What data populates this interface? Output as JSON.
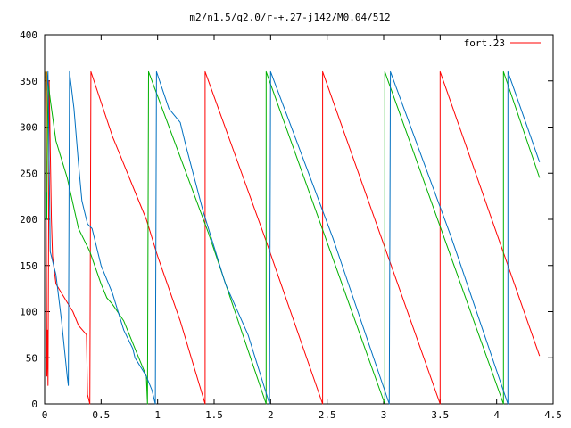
{
  "chart_data": {
    "type": "line",
    "title": "m2/n1.5/q2.0/r-+.27-j142/M0.04/512",
    "xlabel": "",
    "ylabel": "",
    "xlim": [
      0,
      4.5
    ],
    "ylim": [
      0,
      400
    ],
    "x_ticks": [
      "0",
      "0.5",
      "1",
      "1.5",
      "2",
      "2.5",
      "3",
      "3.5",
      "4",
      "4.5"
    ],
    "y_ticks": [
      "0",
      "50",
      "100",
      "150",
      "200",
      "250",
      "300",
      "350",
      "400"
    ],
    "grid": false,
    "legend_position": "top-right",
    "legend": [
      {
        "label": "fort.23",
        "color": "#ff0000"
      }
    ],
    "series": [
      {
        "color": "#ff0000",
        "points": [
          [
            0.01,
            360
          ],
          [
            0.015,
            180
          ],
          [
            0.02,
            30
          ],
          [
            0.025,
            80
          ],
          [
            0.03,
            20
          ],
          [
            0.04,
            350
          ],
          [
            0.06,
            200
          ],
          [
            0.07,
            160
          ],
          [
            0.1,
            130
          ],
          [
            0.15,
            120
          ],
          [
            0.2,
            110
          ],
          [
            0.25,
            100
          ],
          [
            0.3,
            85
          ],
          [
            0.35,
            78
          ],
          [
            0.37,
            75
          ],
          [
            0.38,
            10
          ],
          [
            0.4,
            0
          ],
          [
            0.41,
            360
          ],
          [
            0.6,
            290
          ],
          [
            0.7,
            260
          ],
          [
            0.8,
            230
          ],
          [
            0.9,
            200
          ],
          [
            1.0,
            160
          ],
          [
            1.2,
            90
          ],
          [
            1.42,
            0
          ],
          [
            1.42,
            360
          ],
          [
            1.95,
            180
          ],
          [
            2.46,
            0
          ],
          [
            2.46,
            360
          ],
          [
            2.98,
            180
          ],
          [
            3.5,
            0
          ],
          [
            3.5,
            360
          ],
          [
            4.38,
            52
          ]
        ]
      },
      {
        "color": "#00b000",
        "points": [
          [
            0.01,
            360
          ],
          [
            0.02,
            200
          ],
          [
            0.03,
            350
          ],
          [
            0.05,
            330
          ],
          [
            0.1,
            285
          ],
          [
            0.15,
            265
          ],
          [
            0.2,
            245
          ],
          [
            0.3,
            190
          ],
          [
            0.4,
            165
          ],
          [
            0.5,
            130
          ],
          [
            0.55,
            115
          ],
          [
            0.6,
            108
          ],
          [
            0.7,
            90
          ],
          [
            0.8,
            60
          ],
          [
            0.9,
            30
          ],
          [
            0.91,
            0
          ],
          [
            0.92,
            360
          ],
          [
            1.45,
            185
          ],
          [
            1.96,
            0
          ],
          [
            1.96,
            360
          ],
          [
            2.5,
            175
          ],
          [
            3.01,
            0
          ],
          [
            3.01,
            360
          ],
          [
            3.55,
            175
          ],
          [
            4.06,
            0
          ],
          [
            4.06,
            360
          ],
          [
            4.38,
            245
          ]
        ]
      },
      {
        "color": "#0070c0",
        "points": [
          [
            0.01,
            355
          ],
          [
            0.02,
            340
          ],
          [
            0.03,
            360
          ],
          [
            0.05,
            165
          ],
          [
            0.1,
            140
          ],
          [
            0.15,
            90
          ],
          [
            0.2,
            30
          ],
          [
            0.21,
            20
          ],
          [
            0.22,
            360
          ],
          [
            0.26,
            320
          ],
          [
            0.3,
            260
          ],
          [
            0.33,
            220
          ],
          [
            0.35,
            210
          ],
          [
            0.38,
            195
          ],
          [
            0.42,
            190
          ],
          [
            0.5,
            150
          ],
          [
            0.6,
            120
          ],
          [
            0.7,
            80
          ],
          [
            0.78,
            60
          ],
          [
            0.8,
            50
          ],
          [
            0.85,
            40
          ],
          [
            0.9,
            30
          ],
          [
            0.95,
            15
          ],
          [
            0.98,
            0
          ],
          [
            0.99,
            360
          ],
          [
            1.1,
            320
          ],
          [
            1.2,
            305
          ],
          [
            1.25,
            280
          ],
          [
            1.4,
            210
          ],
          [
            1.6,
            130
          ],
          [
            1.8,
            75
          ],
          [
            1.99,
            0
          ],
          [
            2.0,
            360
          ],
          [
            2.55,
            180
          ],
          [
            3.05,
            0
          ],
          [
            3.06,
            360
          ],
          [
            3.6,
            180
          ],
          [
            4.1,
            0
          ],
          [
            4.1,
            360
          ],
          [
            4.38,
            262
          ]
        ]
      },
      {
        "color": "#c08000",
        "points": [
          [
            0.01,
            360
          ],
          [
            0.015,
            230
          ],
          [
            0.02,
            360
          ]
        ]
      }
    ]
  }
}
